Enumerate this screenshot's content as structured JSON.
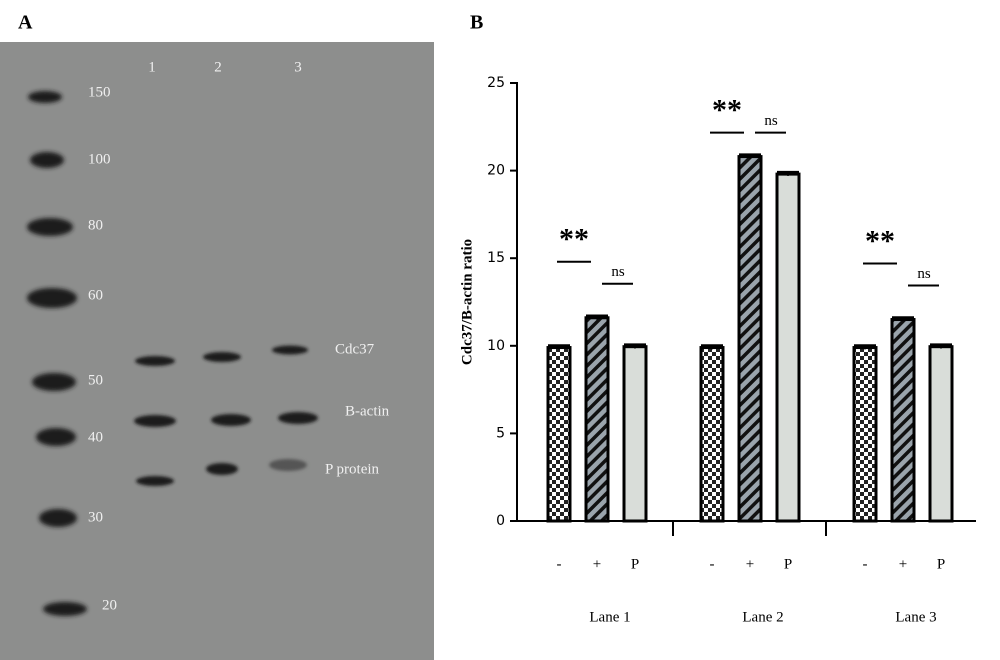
{
  "blot": {
    "panel_label": "A",
    "lanes": [
      "1",
      "2",
      "3"
    ],
    "markers": [
      150,
      100,
      80,
      60,
      50,
      40,
      30,
      20
    ],
    "bands": [
      "Cdc37",
      "B-actin",
      "P protein"
    ]
  },
  "chart_data": {
    "type": "bar",
    "panel_label": "B",
    "y_label": "Cdc37/B-actin ratio",
    "ylim": [
      0,
      25
    ],
    "yticks": [
      0,
      5,
      10,
      15,
      20,
      25
    ],
    "categories": [
      "-",
      "+",
      "P"
    ],
    "groups": [
      {
        "name": "Lane 1",
        "values": [
          9.9,
          11.6,
          9.95
        ],
        "errors": [
          0.1,
          0.1,
          0.1
        ],
        "annotations": [
          "**",
          "ns"
        ]
      },
      {
        "name": "Lane 2",
        "values": [
          9.9,
          20.8,
          19.8
        ],
        "errors": [
          0.1,
          0.1,
          0.1
        ],
        "annotations": [
          "**",
          "ns"
        ]
      },
      {
        "name": "Lane 3",
        "values": [
          9.9,
          11.5,
          9.95
        ],
        "errors": [
          0.1,
          0.1,
          0.1
        ],
        "annotations": [
          "**",
          "ns"
        ]
      }
    ]
  }
}
